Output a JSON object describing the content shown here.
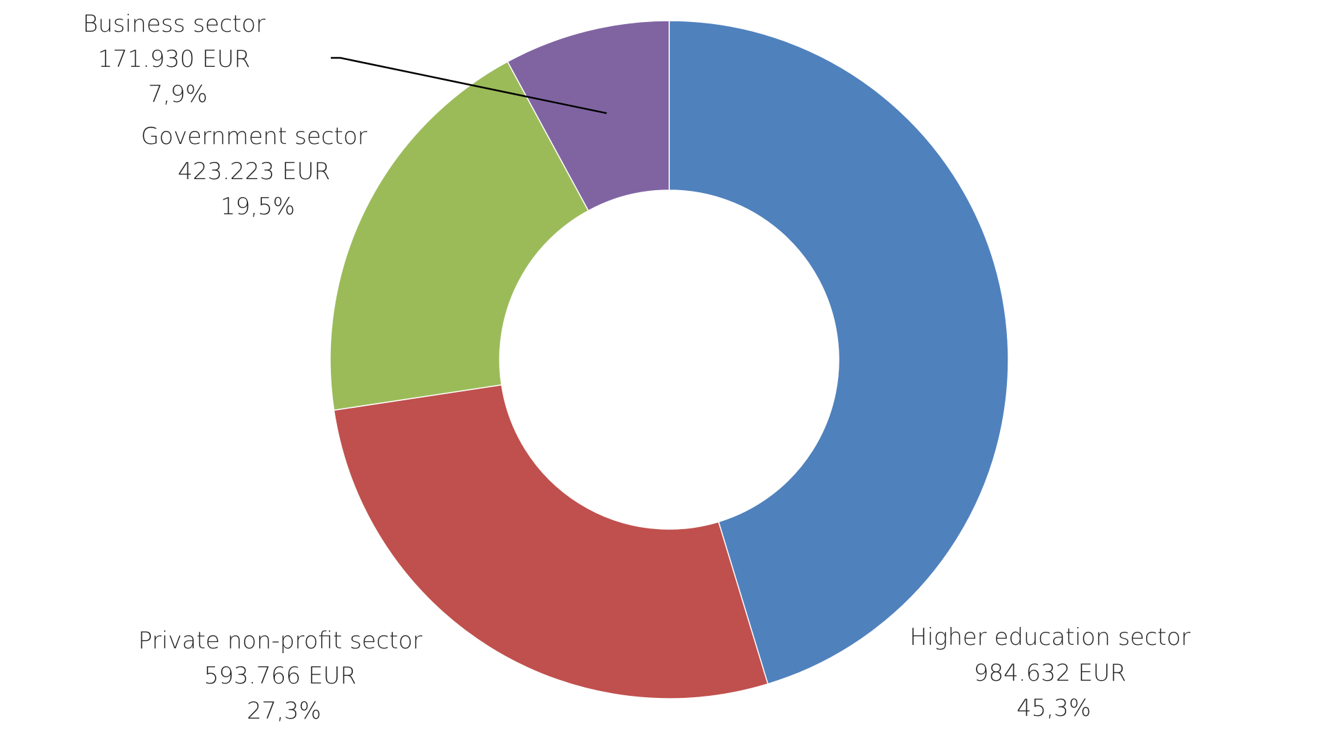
{
  "chart_data": {
    "type": "pie",
    "variant": "donut",
    "title": "",
    "slices": [
      {
        "name": "Higher education sector",
        "value": 984632,
        "value_label": "984.632 EUR",
        "percent": 45.3,
        "percent_label": "45,3%",
        "color": "#4F81BD"
      },
      {
        "name": "Private non-profit sector",
        "value": 593766,
        "value_label": "593.766 EUR",
        "percent": 27.3,
        "percent_label": "27,3%",
        "color": "#C0504D"
      },
      {
        "name": "Government sector",
        "value": 423223,
        "value_label": "423.223 EUR",
        "percent": 19.5,
        "percent_label": "19,5%",
        "color": "#9BBB59"
      },
      {
        "name": "Business sector",
        "value": 171930,
        "value_label": "171.930 EUR",
        "percent": 7.9,
        "percent_label": "7,9%",
        "color": "#8064A2"
      }
    ],
    "start_angle": "12 o'clock",
    "direction": "clockwise",
    "legend": "none",
    "data_labels": "outside"
  }
}
